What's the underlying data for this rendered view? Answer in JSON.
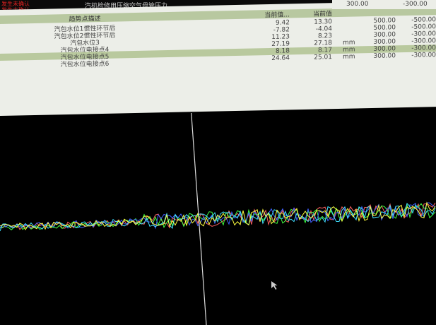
{
  "alarms": [
    "发生未确认",
    "发生未确认"
  ],
  "title": "汽机检修用压缩空气母管压力",
  "headers": [
    "趋势点描述",
    "当前值...",
    "当前值"
  ],
  "rows": [
    {
      "name": "汽包水位1惯性环节后",
      "v1": "9.42",
      "v2": "13.30",
      "unit": "",
      "hi": "500.00",
      "lo": "-500.00"
    },
    {
      "name": "汽包水位2惯性环节后",
      "v1": "-7.82",
      "v2": "-4.04",
      "unit": "",
      "hi": "500.00",
      "lo": "-500.00"
    },
    {
      "name": "汽包水位3",
      "v1": "11.23",
      "v2": "8.23",
      "unit": "",
      "hi": "300.00",
      "lo": "-300.00"
    },
    {
      "name": "汽包水位电接点4",
      "v1": "27.19",
      "v2": "27.18",
      "unit": "mm",
      "hi": "300.00",
      "lo": "-300.00"
    },
    {
      "name": "汽包水位电接点5",
      "v1": "8.18",
      "v2": "8.17",
      "unit": "mm",
      "hi": "300.00",
      "lo": "-300.00"
    },
    {
      "name": "汽包水位电接点6",
      "v1": "24.64",
      "v2": "25.01",
      "unit": "mm",
      "hi": "300.00",
      "lo": "-300.00"
    }
  ],
  "top_limit": {
    "hi": "300.00",
    "lo": "-300.00"
  },
  "highlighted_row": 4,
  "trend_colors": [
    "#ff6060",
    "#40ff40",
    "#4060ff",
    "#40e0ff",
    "#ffff40",
    "#ffffff"
  ]
}
